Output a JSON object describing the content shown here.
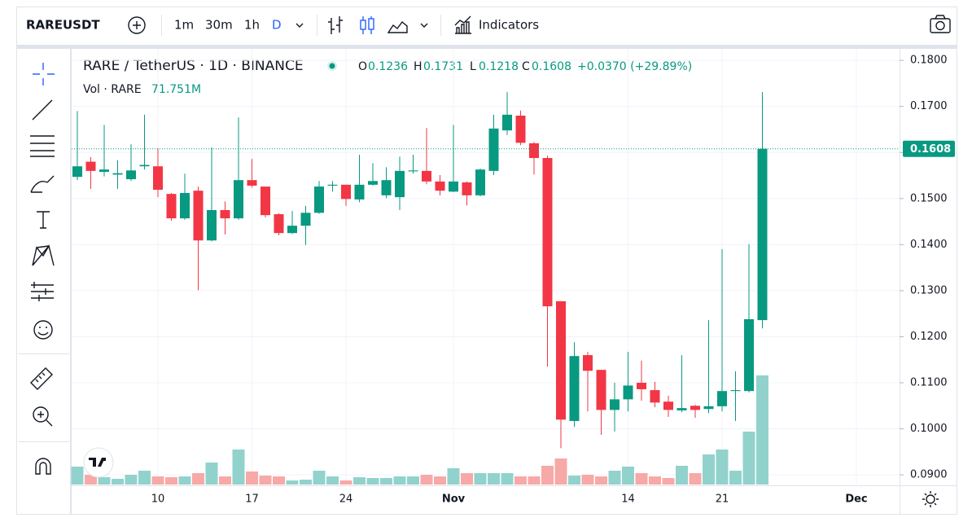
{
  "toolbar": {
    "symbol": "RAREUSDT",
    "intervals": [
      "1m",
      "30m",
      "1h",
      "D"
    ],
    "indicators": "Indicators"
  },
  "chart_data": {
    "type": "candlestick",
    "title": "RARE / TetherUS · 1D · BINANCE",
    "legend": {
      "open_prefix": "O",
      "high_prefix": "H",
      "low_prefix": "L",
      "close_prefix": "C",
      "change": "+0.0370 (+29.89%)",
      "volume_title": "Vol · RARE",
      "volume_last": "71.751M"
    },
    "categories": [
      null,
      null,
      null,
      null,
      null,
      null,
      "10",
      null,
      null,
      null,
      null,
      null,
      null,
      "17",
      null,
      null,
      null,
      null,
      null,
      null,
      "24",
      null,
      null,
      null,
      null,
      null,
      null,
      null,
      "Nov",
      null,
      null,
      null,
      null,
      null,
      null,
      null,
      null,
      null,
      null,
      null,
      null,
      "14",
      null,
      null,
      null,
      null,
      null,
      null,
      "21",
      null,
      null,
      null,
      null,
      null,
      null,
      null,
      null,
      null,
      "Dec"
    ],
    "open": [
      0.1547,
      0.158,
      0.1558,
      0.1552,
      0.1542,
      0.157,
      0.157,
      0.151,
      0.1457,
      0.1517,
      0.1409,
      0.1475,
      0.1457,
      0.154,
      0.1526,
      0.1466,
      0.1425,
      0.1441,
      0.1469,
      0.1528,
      0.153,
      0.1498,
      0.153,
      0.1507,
      0.1503,
      0.1559,
      0.156,
      0.1537,
      0.1515,
      0.1535,
      0.1507,
      0.156,
      0.1648,
      0.168,
      0.162,
      0.1588,
      0.1277,
      0.1017,
      0.116,
      0.1128,
      0.1041,
      0.1064,
      0.11,
      0.1084,
      0.1059,
      0.104,
      0.105,
      0.1043,
      0.1049,
      0.1082,
      0.1082,
      0.1236,
      null,
      null,
      null,
      null,
      null,
      null,
      null
    ],
    "high": [
      0.169,
      0.159,
      0.166,
      0.1583,
      0.1618,
      0.1682,
      0.1609,
      0.1512,
      0.1554,
      0.1526,
      0.1611,
      0.1494,
      0.1676,
      0.1586,
      0.1526,
      0.1468,
      0.1473,
      0.1484,
      0.1538,
      0.1538,
      0.153,
      0.1595,
      0.1577,
      0.1568,
      0.1591,
      0.1595,
      0.1653,
      0.1551,
      0.166,
      0.1537,
      0.1565,
      0.1682,
      0.1731,
      0.1691,
      0.1623,
      0.1593,
      0.1277,
      0.1188,
      0.1167,
      0.1128,
      0.11,
      0.1167,
      0.1148,
      0.1102,
      0.1072,
      0.116,
      0.1052,
      0.1236,
      0.139,
      0.1125,
      0.1401,
      0.1731,
      null,
      null,
      null,
      null,
      null,
      null,
      null
    ],
    "low": [
      0.154,
      0.1521,
      0.1548,
      0.1521,
      0.1538,
      0.1563,
      0.1503,
      0.1452,
      0.1454,
      0.1301,
      0.1407,
      0.1422,
      0.1454,
      0.1524,
      0.1459,
      0.142,
      0.1423,
      0.1399,
      0.1467,
      0.1515,
      0.1484,
      0.1492,
      0.1528,
      0.1501,
      0.1475,
      0.1554,
      0.1531,
      0.1507,
      0.1514,
      0.1485,
      0.1505,
      0.1551,
      0.1638,
      0.1616,
      0.1552,
      0.1135,
      0.0958,
      0.1004,
      0.1038,
      0.0987,
      0.0994,
      0.1038,
      0.1061,
      0.1047,
      0.1026,
      0.1036,
      0.1024,
      0.1034,
      0.1038,
      0.1017,
      0.1079,
      0.1218,
      null,
      null,
      null,
      null,
      null,
      null,
      null
    ],
    "close": [
      0.157,
      0.156,
      0.1563,
      0.1555,
      0.1561,
      0.1573,
      0.1519,
      0.1457,
      0.1512,
      0.1409,
      0.1475,
      0.1457,
      0.154,
      0.1528,
      0.1464,
      0.1425,
      0.1441,
      0.1469,
      0.1526,
      0.153,
      0.1499,
      0.153,
      0.1538,
      0.154,
      0.156,
      0.1561,
      0.1537,
      0.1517,
      0.1537,
      0.1507,
      0.1563,
      0.1652,
      0.1682,
      0.1621,
      0.1588,
      0.1266,
      0.102,
      0.1158,
      0.1126,
      0.1041,
      0.1064,
      0.1094,
      0.1086,
      0.1057,
      0.1041,
      0.1045,
      0.1041,
      0.1049,
      0.1082,
      0.1084,
      0.1238,
      0.1608,
      null,
      null,
      null,
      null,
      null,
      null,
      null
    ],
    "volume": [
      11.78,
      6.43,
      4.82,
      3.75,
      6.43,
      9.1,
      5.36,
      4.82,
      5.36,
      7.5,
      14.46,
      5.36,
      23.03,
      8.57,
      5.89,
      5.36,
      2.68,
      3.21,
      9.1,
      5.36,
      2.68,
      4.82,
      4.28,
      4.28,
      5.36,
      5.36,
      6.43,
      5.36,
      10.71,
      7.5,
      7.5,
      7.5,
      7.5,
      5.36,
      5.36,
      12.32,
      17.14,
      5.89,
      6.43,
      5.36,
      9.1,
      11.78,
      7.5,
      5.36,
      4.28,
      12.32,
      7.5,
      19.81,
      23.03,
      9.1,
      34.81,
      71.751,
      null,
      null,
      null,
      null,
      null,
      null,
      null
    ],
    "up_color": "#089981",
    "down_color": "#f23645",
    "up_volume_color": "#92d2cc",
    "down_volume_color": "#f7a9a7",
    "ylim": [
      0.0879,
      0.1825
    ],
    "yticks": [
      {
        "value": 0.09,
        "label": "0.0900"
      },
      {
        "value": 0.1,
        "label": "0.1000"
      },
      {
        "value": 0.11,
        "label": "0.1100"
      },
      {
        "value": 0.12,
        "label": "0.1200"
      },
      {
        "value": 0.13,
        "label": "0.1300"
      },
      {
        "value": 0.14,
        "label": "0.1400"
      },
      {
        "value": 0.15,
        "label": "0.1500"
      },
      {
        "value": 0.16,
        "label": "0.1600"
      },
      {
        "value": 0.17,
        "label": "0.1700"
      },
      {
        "value": 0.18,
        "label": "0.1800"
      }
    ],
    "grid": true
  }
}
